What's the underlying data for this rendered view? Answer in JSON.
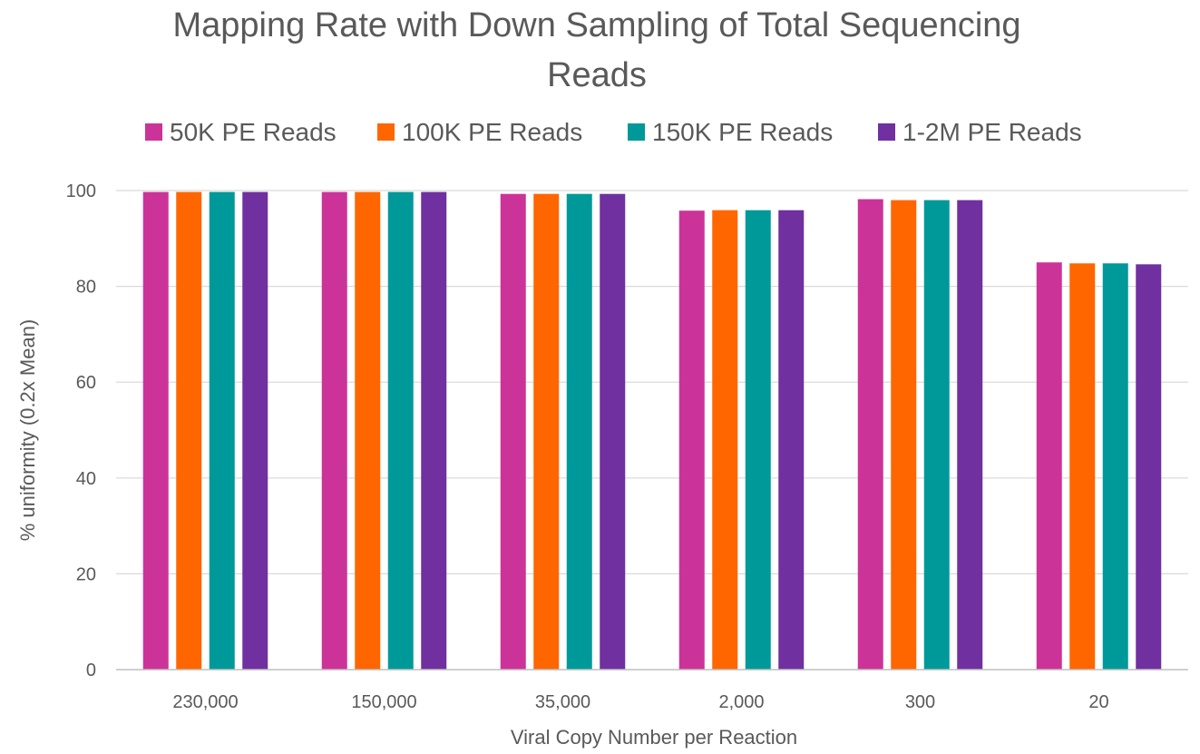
{
  "chart_data": {
    "type": "bar",
    "title_line1": "Mapping Rate with Down Sampling of Total Sequencing",
    "title_line2": "Reads",
    "xlabel": "Viral Copy Number per Reaction",
    "ylabel": "% uniformity (0.2x Mean)",
    "ylim": [
      0,
      100
    ],
    "yticks": [
      "0",
      "20",
      "40",
      "60",
      "80",
      "100"
    ],
    "grid": true,
    "legend_position": "top",
    "categories": [
      "230,000",
      "150,000",
      "35,000",
      "2,000",
      "300",
      "20"
    ],
    "series": [
      {
        "name": "50K PE Reads",
        "color": "#cc3399",
        "values": [
          99.7,
          99.7,
          99.3,
          95.8,
          98.2,
          85.0
        ]
      },
      {
        "name": "100K PE Reads",
        "color": "#ff6600",
        "values": [
          99.7,
          99.7,
          99.3,
          95.9,
          98.0,
          84.8
        ]
      },
      {
        "name": "150K PE Reads",
        "color": "#009999",
        "values": [
          99.7,
          99.7,
          99.3,
          95.9,
          98.0,
          84.8
        ]
      },
      {
        "name": "1-2M PE Reads",
        "color": "#7030a0",
        "values": [
          99.7,
          99.7,
          99.3,
          95.9,
          98.0,
          84.6
        ]
      }
    ]
  }
}
